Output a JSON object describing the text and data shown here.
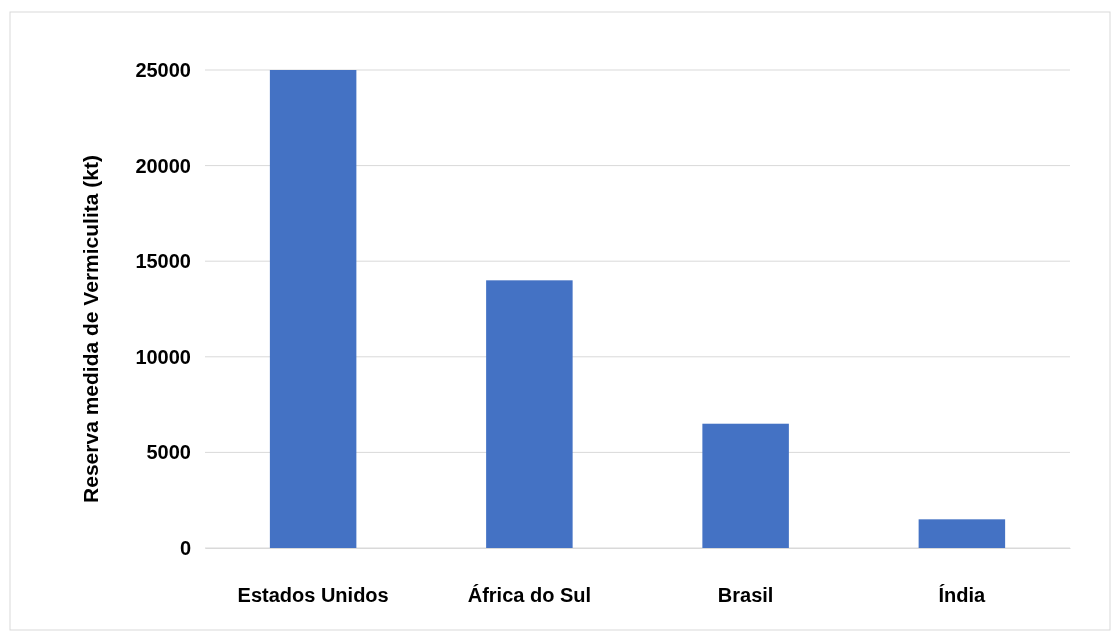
{
  "chart_data": {
    "type": "bar",
    "ylabel": "Reserva medida de Vermiculita (kt)",
    "categories": [
      "Estados Unidos",
      "África do Sul",
      "Brasil",
      "Índia"
    ],
    "values": [
      25000,
      14000,
      6500,
      1500
    ],
    "color": "#4472c4",
    "ylim": [
      0,
      25000
    ],
    "yticks": [
      0,
      5000,
      10000,
      15000,
      20000,
      25000
    ],
    "grid": "y"
  }
}
